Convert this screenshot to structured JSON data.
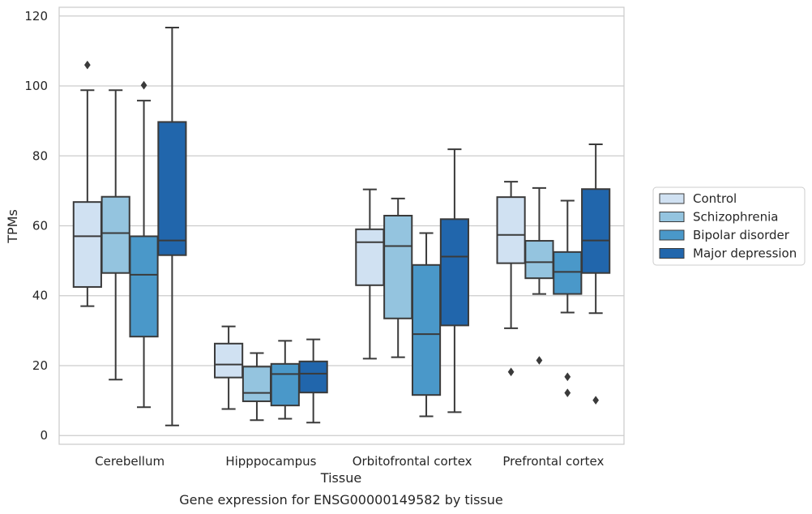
{
  "chart_data": {
    "type": "box",
    "title": "Gene expression for ENSG00000149582 by tissue",
    "xlabel": "Tissue",
    "ylabel": "TPMs",
    "ylim": [
      -2.5,
      122.5
    ],
    "yticks": [
      0,
      20,
      40,
      60,
      80,
      100,
      120
    ],
    "grid": true,
    "legend_position": "right",
    "categories": [
      "Cerebellum",
      "Hipppocampus",
      "Orbitofrontal cortex",
      "Prefrontal cortex"
    ],
    "series": [
      {
        "name": "Control",
        "color": "#d0e1f2",
        "boxes": [
          {
            "whisker_low": 37,
            "q1": 42.5,
            "median": 57,
            "q3": 66.8,
            "whisker_high": 98.8,
            "outliers": [
              106
            ]
          },
          {
            "whisker_low": 7.6,
            "q1": 16.6,
            "median": 20.3,
            "q3": 26.3,
            "whisker_high": 31.2,
            "outliers": []
          },
          {
            "whisker_low": 22,
            "q1": 43,
            "median": 55.3,
            "q3": 59,
            "whisker_high": 70.4,
            "outliers": []
          },
          {
            "whisker_low": 30.7,
            "q1": 49.3,
            "median": 57.4,
            "q3": 68.2,
            "whisker_high": 72.6,
            "outliers": [
              18.2
            ]
          }
        ]
      },
      {
        "name": "Schizophrenia",
        "color": "#94c4df",
        "boxes": [
          {
            "whisker_low": 16,
            "q1": 46.5,
            "median": 57.9,
            "q3": 68.3,
            "whisker_high": 98.8,
            "outliers": []
          },
          {
            "whisker_low": 4.4,
            "q1": 9.8,
            "median": 12.2,
            "q3": 19.7,
            "whisker_high": 23.6,
            "outliers": []
          },
          {
            "whisker_low": 22.4,
            "q1": 33.5,
            "median": 54.2,
            "q3": 62.9,
            "whisker_high": 67.8,
            "outliers": []
          },
          {
            "whisker_low": 40.5,
            "q1": 45,
            "median": 49.6,
            "q3": 55.7,
            "whisker_high": 70.8,
            "outliers": [
              21.5
            ]
          }
        ]
      },
      {
        "name": "Bipolar disorder",
        "color": "#4a98c9",
        "boxes": [
          {
            "whisker_low": 8.1,
            "q1": 28.3,
            "median": 46,
            "q3": 57,
            "whisker_high": 95.8,
            "outliers": [
              100.2
            ]
          },
          {
            "whisker_low": 4.8,
            "q1": 8.6,
            "median": 17.6,
            "q3": 20.5,
            "whisker_high": 27.1,
            "outliers": []
          },
          {
            "whisker_low": 5.5,
            "q1": 11.6,
            "median": 29,
            "q3": 48.8,
            "whisker_high": 57.9,
            "outliers": []
          },
          {
            "whisker_low": 35.2,
            "q1": 40.5,
            "median": 46.8,
            "q3": 52.5,
            "whisker_high": 67.2,
            "outliers": [
              16.8,
              12.2
            ]
          }
        ]
      },
      {
        "name": "Major depression",
        "color": "#2166ac",
        "boxes": [
          {
            "whisker_low": 2.9,
            "q1": 51.6,
            "median": 55.8,
            "q3": 89.7,
            "whisker_high": 116.7,
            "outliers": []
          },
          {
            "whisker_low": 3.7,
            "q1": 12.3,
            "median": 17.7,
            "q3": 21.2,
            "whisker_high": 27.5,
            "outliers": []
          },
          {
            "whisker_low": 6.7,
            "q1": 31.5,
            "median": 51.2,
            "q3": 61.9,
            "whisker_high": 81.9,
            "outliers": []
          },
          {
            "whisker_low": 35,
            "q1": 46.5,
            "median": 55.8,
            "q3": 70.5,
            "whisker_high": 83.3,
            "outliers": [
              10.1
            ]
          }
        ]
      }
    ]
  }
}
